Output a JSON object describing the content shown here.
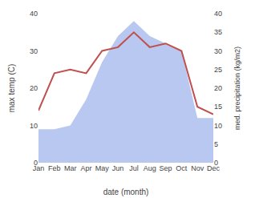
{
  "chart_data": {
    "type": "line",
    "xlabel": "date (month)",
    "ylabel": "max temp (C)",
    "y2label": "med. precipitation (kg/m2)",
    "categories": [
      "Jan",
      "Feb",
      "Mar",
      "Apr",
      "May",
      "Jun",
      "Jul",
      "Aug",
      "Sep",
      "Oct",
      "Nov",
      "Dec"
    ],
    "series": [
      {
        "type": "area",
        "color": "#b8c8f0",
        "axis": "y2",
        "values": [
          9,
          9,
          10,
          17,
          27,
          34,
          38,
          34,
          32,
          30,
          12,
          12
        ]
      },
      {
        "type": "line",
        "color": "#c0504d",
        "values": [
          14,
          24,
          25,
          24,
          30,
          31,
          35,
          31,
          32,
          30,
          15,
          13
        ]
      }
    ],
    "ylim": [
      0,
      40
    ],
    "yticks": [
      0,
      10,
      20,
      30,
      40
    ],
    "y2lim": [
      0,
      40
    ],
    "y2ticks": [
      0,
      5,
      10,
      15,
      20,
      25,
      30,
      35,
      40
    ],
    "grid": false
  }
}
